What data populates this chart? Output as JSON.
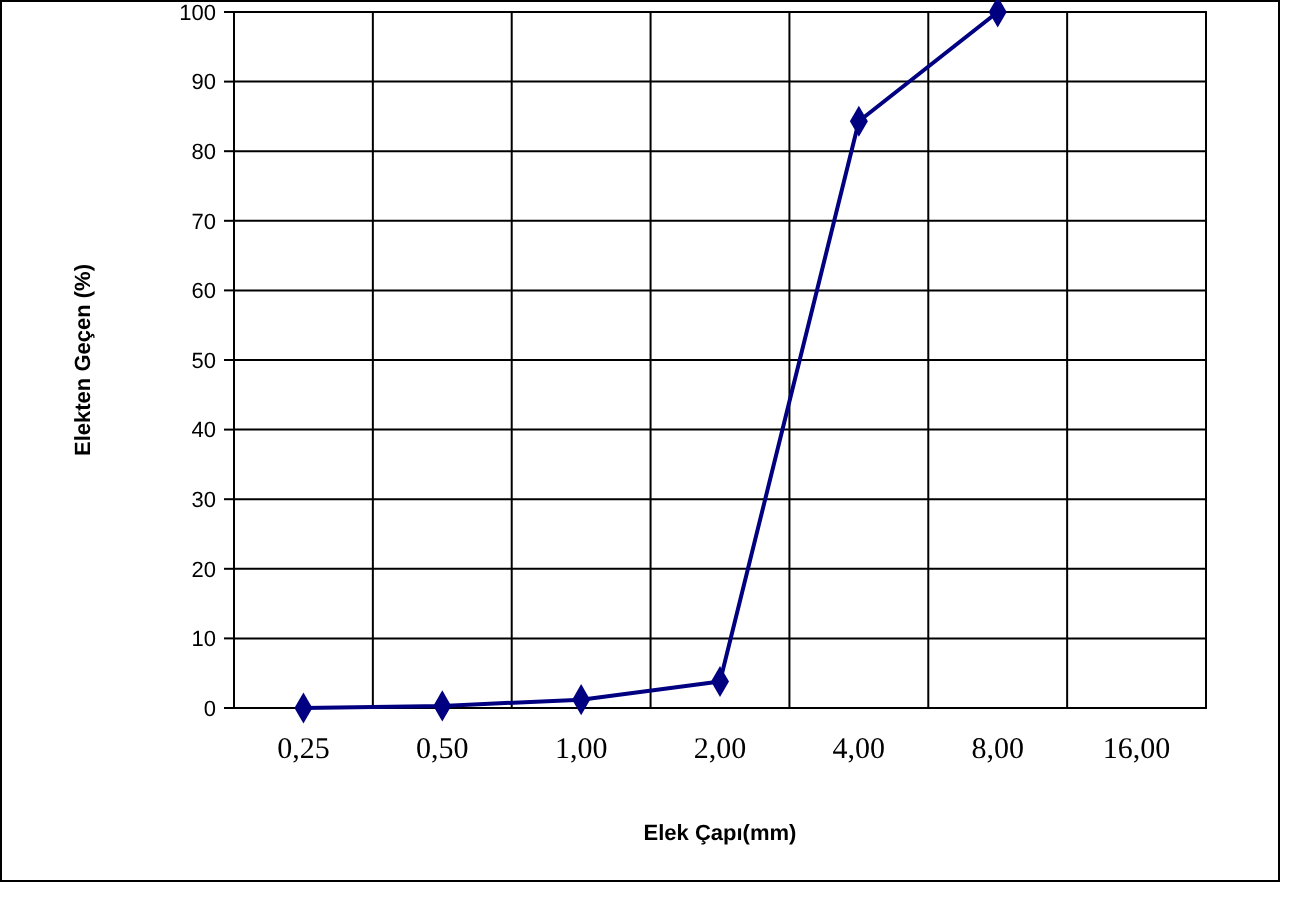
{
  "chart_data": {
    "type": "line",
    "xlabel": "Elek Çapı(mm)",
    "ylabel": "Elekten Geçen (%)",
    "categories": [
      "0,25",
      "0,50",
      "1,00",
      "2,00",
      "4,00",
      "8,00",
      "16,00"
    ],
    "series": [
      {
        "color": "#000080",
        "values": [
          0,
          0.3,
          1.2,
          3.8,
          84.3,
          100,
          null
        ]
      }
    ],
    "ylim": [
      0,
      100
    ],
    "yticks": [
      0,
      10,
      20,
      30,
      40,
      50,
      60,
      70,
      80,
      90,
      100
    ],
    "grid": true,
    "marker": "diamond",
    "line_style": "solid"
  }
}
